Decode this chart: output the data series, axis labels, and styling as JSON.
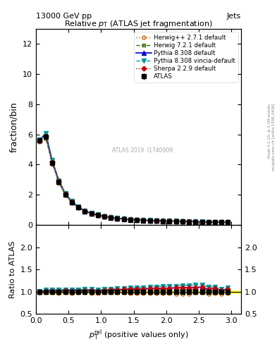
{
  "title": "Relative $p_{T}$ (ATLAS jet fragmentation)",
  "header_left": "13000 GeV pp",
  "header_right": "Jets",
  "ylabel_main": "fraction/bin",
  "ylabel_ratio": "Ratio to ATLAS",
  "watermark": "ATLAS 2019  I1740909",
  "ylim_main": [
    0,
    13
  ],
  "ylim_ratio": [
    0.5,
    2.5
  ],
  "xlim": [
    0,
    3.15
  ],
  "yticks_main": [
    0,
    2,
    4,
    6,
    8,
    10,
    12
  ],
  "yticks_ratio": [
    0.5,
    1.0,
    1.5,
    2.0
  ],
  "x_data": [
    0.05,
    0.15,
    0.25,
    0.35,
    0.45,
    0.55,
    0.65,
    0.75,
    0.85,
    0.95,
    1.05,
    1.15,
    1.25,
    1.35,
    1.45,
    1.55,
    1.65,
    1.75,
    1.85,
    1.95,
    2.05,
    2.15,
    2.25,
    2.35,
    2.45,
    2.55,
    2.65,
    2.75,
    2.85,
    2.95
  ],
  "atlas_y": [
    5.6,
    5.85,
    4.1,
    2.85,
    2.0,
    1.5,
    1.15,
    0.9,
    0.75,
    0.65,
    0.55,
    0.48,
    0.42,
    0.38,
    0.35,
    0.32,
    0.3,
    0.28,
    0.26,
    0.25,
    0.24,
    0.23,
    0.22,
    0.21,
    0.2,
    0.19,
    0.19,
    0.18,
    0.18,
    0.17
  ],
  "atlas_err": [
    0.05,
    0.05,
    0.04,
    0.03,
    0.02,
    0.02,
    0.015,
    0.012,
    0.01,
    0.009,
    0.008,
    0.007,
    0.006,
    0.006,
    0.005,
    0.005,
    0.004,
    0.004,
    0.004,
    0.003,
    0.003,
    0.003,
    0.003,
    0.003,
    0.002,
    0.002,
    0.002,
    0.002,
    0.002,
    0.002
  ],
  "herwig_pp_y": [
    5.5,
    5.7,
    4.0,
    2.75,
    1.95,
    1.45,
    1.12,
    0.88,
    0.73,
    0.63,
    0.54,
    0.47,
    0.41,
    0.37,
    0.34,
    0.31,
    0.29,
    0.27,
    0.25,
    0.24,
    0.23,
    0.22,
    0.21,
    0.2,
    0.195,
    0.185,
    0.18,
    0.175,
    0.17,
    0.165
  ],
  "herwig72_y": [
    5.55,
    5.8,
    4.15,
    2.88,
    2.02,
    1.52,
    1.16,
    0.91,
    0.76,
    0.66,
    0.56,
    0.49,
    0.43,
    0.39,
    0.36,
    0.33,
    0.31,
    0.29,
    0.27,
    0.26,
    0.25,
    0.24,
    0.23,
    0.22,
    0.21,
    0.2,
    0.195,
    0.185,
    0.18,
    0.175
  ],
  "pythia_y": [
    5.6,
    6.05,
    4.25,
    2.95,
    2.08,
    1.56,
    1.2,
    0.94,
    0.78,
    0.67,
    0.57,
    0.5,
    0.44,
    0.4,
    0.37,
    0.34,
    0.32,
    0.3,
    0.28,
    0.27,
    0.26,
    0.25,
    0.24,
    0.23,
    0.22,
    0.21,
    0.2,
    0.195,
    0.185,
    0.18
  ],
  "pythia_vincia_y": [
    5.65,
    6.1,
    4.28,
    2.97,
    2.1,
    1.57,
    1.21,
    0.95,
    0.79,
    0.68,
    0.58,
    0.51,
    0.45,
    0.41,
    0.38,
    0.35,
    0.33,
    0.31,
    0.29,
    0.28,
    0.27,
    0.26,
    0.25,
    0.24,
    0.23,
    0.22,
    0.21,
    0.2,
    0.19,
    0.185
  ],
  "sherpa_y": [
    5.58,
    5.9,
    4.18,
    2.9,
    2.05,
    1.53,
    1.17,
    0.92,
    0.77,
    0.66,
    0.57,
    0.5,
    0.44,
    0.4,
    0.37,
    0.34,
    0.32,
    0.3,
    0.28,
    0.27,
    0.26,
    0.25,
    0.24,
    0.23,
    0.22,
    0.21,
    0.2,
    0.195,
    0.185,
    0.18
  ],
  "col_atlas": "#000000",
  "col_herwig_pp": "#cc6600",
  "col_herwig72": "#336600",
  "col_pythia": "#0000cc",
  "col_pythia_vincia": "#009999",
  "col_sherpa": "#cc0000",
  "ratio_herwig_pp": [
    0.98,
    0.975,
    0.975,
    0.965,
    0.975,
    0.967,
    0.974,
    0.978,
    0.973,
    0.969,
    0.982,
    0.979,
    0.976,
    0.974,
    0.971,
    0.969,
    0.967,
    0.964,
    0.962,
    0.96,
    0.958,
    0.957,
    0.955,
    0.952,
    0.975,
    0.974,
    0.947,
    0.972,
    0.944,
    0.971
  ],
  "ratio_herwig72": [
    0.991,
    0.991,
    1.012,
    1.011,
    1.01,
    1.013,
    1.009,
    1.011,
    1.013,
    1.015,
    1.018,
    1.021,
    1.024,
    1.026,
    1.029,
    1.031,
    1.033,
    1.036,
    1.038,
    1.04,
    1.042,
    1.043,
    1.045,
    1.048,
    1.05,
    1.053,
    1.026,
    1.028,
    1.0,
    1.03
  ],
  "ratio_pythia": [
    1.0,
    1.034,
    1.037,
    1.035,
    1.04,
    1.04,
    1.043,
    1.044,
    1.04,
    1.031,
    1.036,
    1.042,
    1.048,
    1.053,
    1.057,
    1.063,
    1.067,
    1.071,
    1.077,
    1.08,
    1.083,
    1.087,
    1.091,
    1.095,
    1.1,
    1.105,
    1.053,
    1.083,
    1.028,
    1.059
  ],
  "ratio_pythia_vincia": [
    1.009,
    1.043,
    1.044,
    1.042,
    1.05,
    1.047,
    1.052,
    1.056,
    1.053,
    1.046,
    1.055,
    1.063,
    1.071,
    1.079,
    1.086,
    1.094,
    1.1,
    1.107,
    1.115,
    1.12,
    1.125,
    1.13,
    1.136,
    1.143,
    1.15,
    1.158,
    1.105,
    1.111,
    1.056,
    1.088
  ],
  "ratio_sherpa": [
    0.996,
    1.009,
    1.02,
    1.018,
    1.025,
    1.02,
    1.017,
    1.022,
    1.027,
    1.015,
    1.036,
    1.042,
    1.048,
    1.053,
    1.057,
    1.063,
    1.067,
    1.071,
    1.077,
    1.08,
    1.083,
    1.087,
    1.091,
    1.095,
    1.1,
    1.105,
    1.053,
    1.083,
    1.028,
    1.059
  ]
}
